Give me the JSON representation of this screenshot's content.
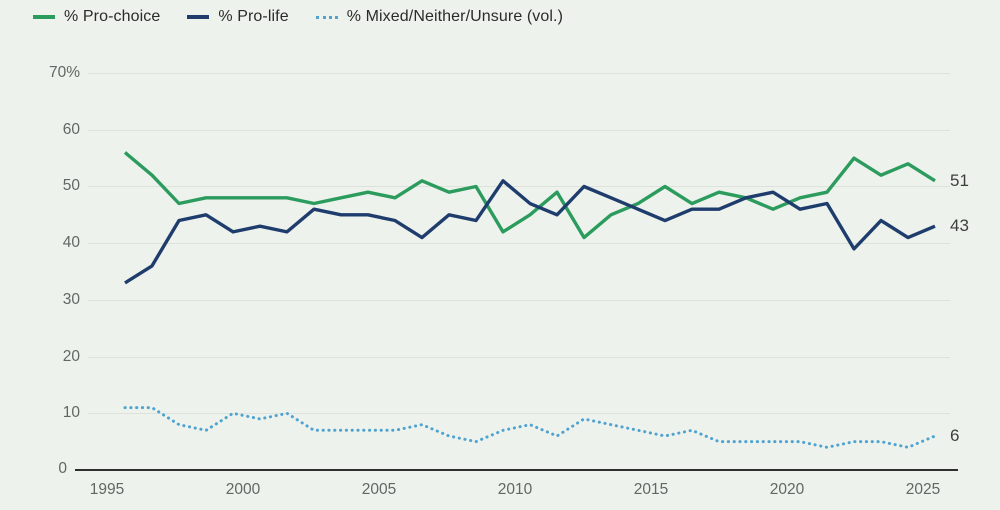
{
  "legend": {
    "items": [
      {
        "label": "% Pro-choice",
        "color": "#2b9c5e",
        "style": "solid"
      },
      {
        "label": "% Pro-life",
        "color": "#1e3d6d",
        "style": "solid"
      },
      {
        "label": "% Mixed/Neither/Unsure (vol.)",
        "color": "#4fa3d1",
        "style": "dotted"
      }
    ]
  },
  "chart_data": {
    "type": "line",
    "x": [
      1995,
      1996,
      1997,
      1998,
      1999,
      2000,
      2001,
      2002,
      2003,
      2004,
      2005,
      2006,
      2007,
      2008,
      2009,
      2010,
      2011,
      2012,
      2013,
      2014,
      2015,
      2016,
      2017,
      2018,
      2019,
      2020,
      2021,
      2022,
      2023,
      2024,
      2025
    ],
    "series": [
      {
        "name": "% Pro-choice",
        "color": "#2b9c5e",
        "style": "solid",
        "values": [
          56,
          52,
          47,
          48,
          48,
          48,
          48,
          47,
          48,
          49,
          48,
          51,
          49,
          50,
          42,
          45,
          49,
          41,
          45,
          47,
          50,
          47,
          49,
          48,
          46,
          48,
          49,
          55,
          52,
          54,
          51
        ]
      },
      {
        "name": "% Pro-life",
        "color": "#1e3d6d",
        "style": "solid",
        "values": [
          33,
          36,
          44,
          45,
          42,
          43,
          42,
          46,
          45,
          45,
          44,
          41,
          45,
          44,
          51,
          47,
          45,
          50,
          48,
          46,
          44,
          46,
          46,
          48,
          49,
          46,
          47,
          39,
          44,
          41,
          43
        ]
      },
      {
        "name": "% Mixed/Neither/Unsure (vol.)",
        "color": "#4fa3d1",
        "style": "dotted",
        "values": [
          11,
          11,
          8,
          7,
          10,
          9,
          10,
          7,
          7,
          7,
          7,
          8,
          6,
          5,
          7,
          8,
          6,
          9,
          8,
          7,
          6,
          7,
          5,
          5,
          5,
          5,
          4,
          5,
          5,
          4,
          6
        ]
      }
    ],
    "title": "",
    "xlabel": "",
    "ylabel": "",
    "ylim": [
      0,
      70
    ],
    "grid": true,
    "legend_position": "top-left",
    "y_ticks": [
      {
        "value": 70,
        "label": "70%"
      },
      {
        "value": 60,
        "label": "60"
      },
      {
        "value": 50,
        "label": "50"
      },
      {
        "value": 40,
        "label": "40"
      },
      {
        "value": 30,
        "label": "30"
      },
      {
        "value": 20,
        "label": "20"
      },
      {
        "value": 10,
        "label": "10"
      },
      {
        "value": 0,
        "label": "0"
      }
    ],
    "x_ticks": [
      {
        "year": 1995,
        "label": "1995"
      },
      {
        "year": 2000,
        "label": "2000"
      },
      {
        "year": 2005,
        "label": "2005"
      },
      {
        "year": 2010,
        "label": "2010"
      },
      {
        "year": 2015,
        "label": "2015"
      },
      {
        "year": 2020,
        "label": "2020"
      },
      {
        "year": 2025,
        "label": "2025"
      }
    ],
    "end_labels": [
      {
        "series": "% Pro-choice",
        "value": 51,
        "label": "51"
      },
      {
        "series": "% Pro-life",
        "value": 43,
        "label": "43"
      },
      {
        "series": "% Mixed/Neither/Unsure (vol.)",
        "value": 6,
        "label": "6"
      }
    ]
  }
}
